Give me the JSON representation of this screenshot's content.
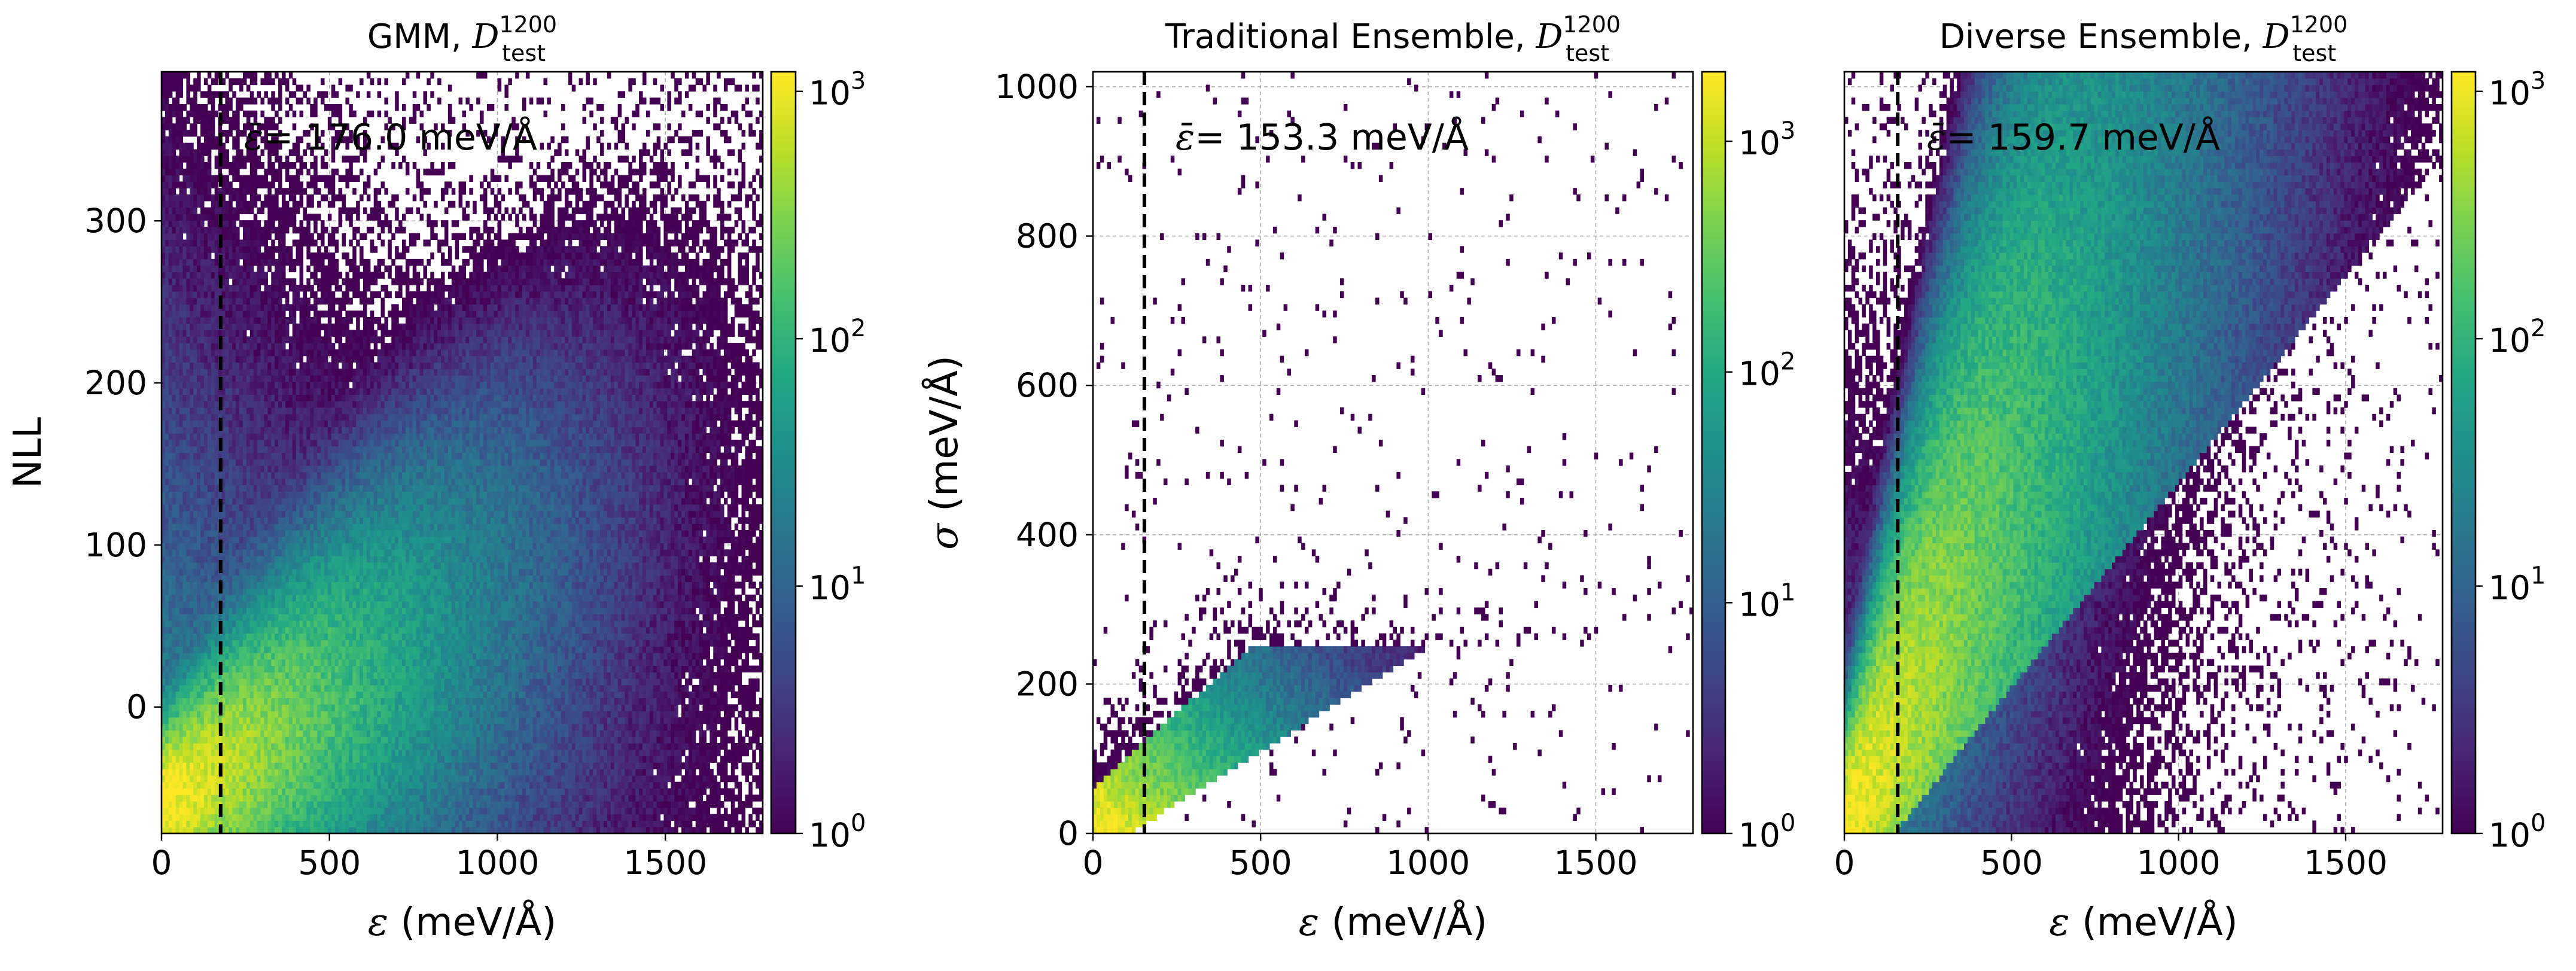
{
  "chart_data": [
    {
      "type": "heatmap",
      "title_prefix": "GMM, ",
      "title_math": {
        "base": "D",
        "sup": "1200",
        "sub": "test"
      },
      "xlabel_sym": "ε",
      "xlabel_unit": " (meV/Å)",
      "ylabel_sym": "",
      "ylabel_text": "NLL",
      "xlim": [
        0,
        1790
      ],
      "ylim": [
        -78,
        392
      ],
      "xticks": [
        0,
        500,
        1000,
        1500
      ],
      "xtick_labels": [
        "0",
        "500",
        "1000",
        "1500"
      ],
      "yticks": [
        0,
        100,
        200,
        300
      ],
      "ytick_labels": [
        "0",
        "100",
        "200",
        "300"
      ],
      "grid": true,
      "vline_x": 176.0,
      "annotation_value": "= 176.0",
      "annotation_unit": " meV/Å",
      "colorbar": {
        "scale": "log",
        "vmin": 1,
        "vmax": 1200,
        "ticks": [
          1,
          10,
          100,
          1000
        ],
        "tick_labels": [
          {
            "b": "10",
            "e": "0"
          },
          {
            "b": "10",
            "e": "1"
          },
          {
            "b": "10",
            "e": "2"
          },
          {
            "b": "10",
            "e": "3"
          }
        ]
      },
      "colormap": "viridis",
      "density_model": {
        "kind": "gmm",
        "slope": 0.13,
        "intercept": -62,
        "spread": 22
      }
    },
    {
      "type": "heatmap",
      "title_prefix": "Traditional Ensemble, ",
      "title_math": {
        "base": "D",
        "sup": "1200",
        "sub": "test"
      },
      "xlabel_sym": "ε",
      "xlabel_unit": " (meV/Å)",
      "ylabel_sym": "σ",
      "ylabel_text": " (meV/Å)",
      "xlim": [
        0,
        1790
      ],
      "ylim": [
        0,
        1020
      ],
      "xticks": [
        0,
        500,
        1000,
        1500
      ],
      "xtick_labels": [
        "0",
        "500",
        "1000",
        "1500"
      ],
      "yticks": [
        0,
        200,
        400,
        600,
        800,
        1000
      ],
      "ytick_labels": [
        "0",
        "200",
        "400",
        "600",
        "800",
        "1000"
      ],
      "grid": true,
      "vline_x": 153.3,
      "annotation_value": "= 153.3",
      "annotation_unit": " meV/Å",
      "colorbar": {
        "scale": "log",
        "vmin": 1,
        "vmax": 2000,
        "ticks": [
          1,
          10,
          100,
          1000
        ],
        "tick_labels": [
          {
            "b": "10",
            "e": "0"
          },
          {
            "b": "10",
            "e": "1"
          },
          {
            "b": "10",
            "e": "2"
          },
          {
            "b": "10",
            "e": "3"
          }
        ]
      },
      "colormap": "viridis",
      "density_model": {
        "kind": "trad",
        "cap": 210,
        "slope": 0.45,
        "spread": 35
      }
    },
    {
      "type": "heatmap",
      "title_prefix": "Diverse Ensemble, ",
      "title_math": {
        "base": "D",
        "sup": "1200",
        "sub": "test"
      },
      "xlabel_sym": "ε",
      "xlabel_unit": " (meV/Å)",
      "ylabel_sym": "",
      "ylabel_text": "",
      "xlim": [
        0,
        1790
      ],
      "ylim": [
        0,
        1020
      ],
      "xticks": [
        0,
        500,
        1000,
        1500
      ],
      "xtick_labels": [
        "0",
        "500",
        "1000",
        "1500"
      ],
      "yticks": [],
      "ytick_labels": [],
      "grid": true,
      "vline_x": 159.7,
      "annotation_value": "= 159.7",
      "annotation_unit": " meV/Å",
      "colorbar": {
        "scale": "log",
        "vmin": 1,
        "vmax": 1200,
        "ticks": [
          1,
          10,
          100,
          1000
        ],
        "tick_labels": [
          {
            "b": "10",
            "e": "0"
          },
          {
            "b": "10",
            "e": "1"
          },
          {
            "b": "10",
            "e": "2"
          },
          {
            "b": "10",
            "e": "3"
          }
        ]
      },
      "colormap": "viridis",
      "density_model": {
        "kind": "div",
        "slope": 0.85,
        "spread": 0.45
      }
    }
  ]
}
